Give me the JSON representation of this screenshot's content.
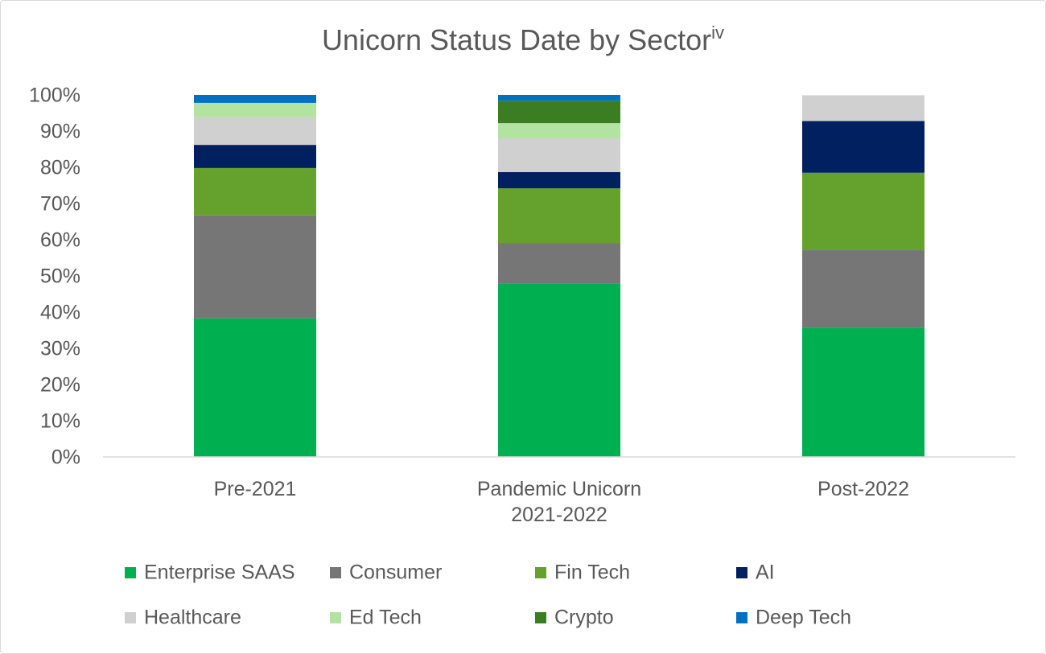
{
  "chart_data": {
    "type": "stacked_bar_100",
    "title": "Unicorn Status Date by Sector",
    "title_note": "iv",
    "categories": [
      "Pre-2021",
      "Pandemic Unicorn 2021-2022",
      "Post-2022"
    ],
    "series": [
      {
        "name": "Enterprise SAAS",
        "color": "#00b050",
        "values": [
          38.3,
          47.8,
          35.7
        ]
      },
      {
        "name": "Consumer",
        "color": "#767676",
        "values": [
          28.4,
          11.3,
          21.4
        ]
      },
      {
        "name": "Fin Tech",
        "color": "#65a12d",
        "values": [
          13.1,
          15.1,
          21.4
        ]
      },
      {
        "name": "AI",
        "color": "#002060",
        "values": [
          6.4,
          4.5,
          14.3
        ]
      },
      {
        "name": "Healthcare",
        "color": "#d0d0d0",
        "values": [
          7.6,
          9.3,
          7.1
        ]
      },
      {
        "name": "Ed Tech",
        "color": "#b3e3a1",
        "values": [
          4.0,
          4.2,
          0
        ]
      },
      {
        "name": "Crypto",
        "color": "#3a7d23",
        "values": [
          0,
          6.2,
          0
        ]
      },
      {
        "name": "Deep Tech",
        "color": "#0070c0",
        "values": [
          2.2,
          1.6,
          0
        ]
      }
    ],
    "ylim": [
      0,
      100
    ],
    "yticks": [
      {
        "value": 0,
        "label": "0%"
      },
      {
        "value": 10,
        "label": "10%"
      },
      {
        "value": 20,
        "label": "20%"
      },
      {
        "value": 30,
        "label": "30%"
      },
      {
        "value": 40,
        "label": "40%"
      },
      {
        "value": 50,
        "label": "50%"
      },
      {
        "value": 60,
        "label": "60%"
      },
      {
        "value": 70,
        "label": "70%"
      },
      {
        "value": 80,
        "label": "80%"
      },
      {
        "value": 90,
        "label": "90%"
      },
      {
        "value": 100,
        "label": "100%"
      }
    ],
    "grid": false,
    "legend": "bottom"
  }
}
